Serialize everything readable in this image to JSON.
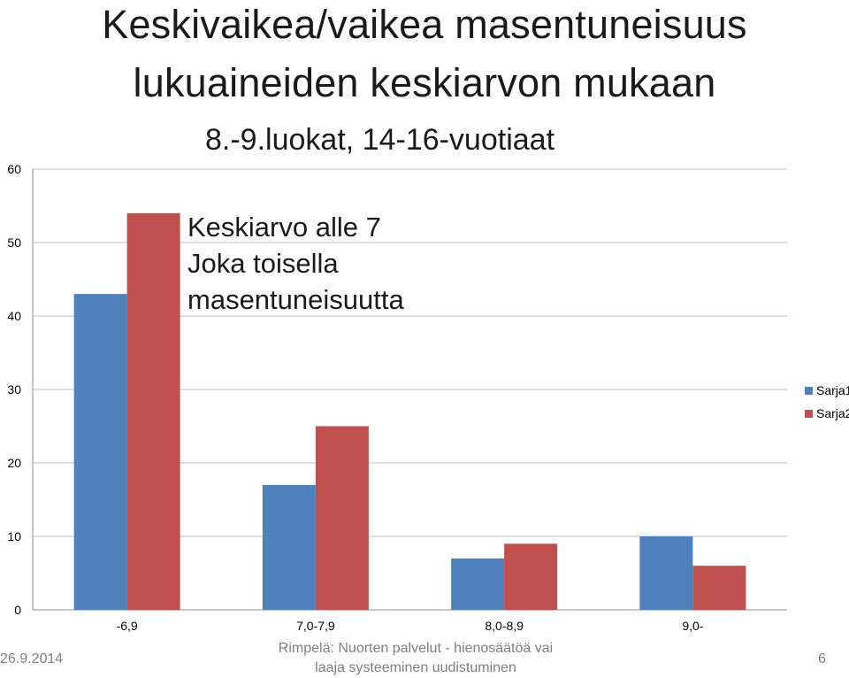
{
  "slide": {
    "title_line1": "Keskivaikea/vaikea masentuneisuus",
    "title_line2": "lukuaineiden keskiarvon mukaan",
    "subtitle": "8.-9.luokat, 14-16-vuotiaat",
    "annotation": [
      "Keskiarvo alle 7",
      "Joka toisella",
      "masentuneisuutta"
    ],
    "footer_date": "26.9.2014",
    "footer_source": [
      "Rimpelä: Nuorten palvelut - hienosäätöä vai",
      "laaja systeeminen uudistuminen"
    ],
    "page_number": "6"
  },
  "chart_data": {
    "type": "bar",
    "categories": [
      "-6,9",
      "7,0-7,9",
      "8,0-8,9",
      "9,0-"
    ],
    "series": [
      {
        "name": "Sarja1",
        "values": [
          43,
          17,
          7,
          10
        ],
        "color": "#4f81bd"
      },
      {
        "name": "Sarja2",
        "values": [
          54,
          25,
          9,
          6
        ],
        "color": "#c0504d"
      }
    ],
    "ylim": [
      0,
      60
    ],
    "yticks": [
      0,
      10,
      20,
      30,
      40,
      50,
      60
    ],
    "grid": true,
    "legend_position": "right"
  }
}
